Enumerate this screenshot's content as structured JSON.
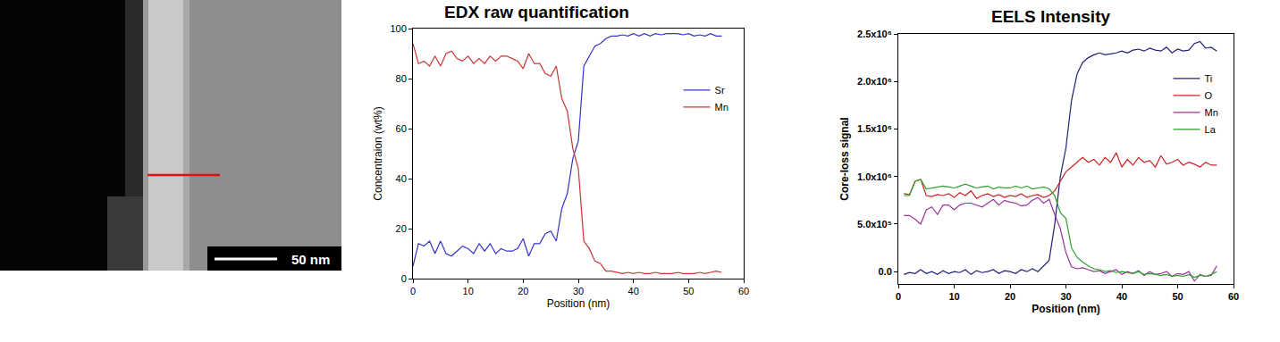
{
  "chart_data": [
    {
      "type": "image",
      "annotations": [
        "50 nm"
      ]
    },
    {
      "type": "line",
      "title": "EDX raw quantification",
      "x_label": "Position (nm)",
      "y_label": "Concentraion (wt%)",
      "x": [
        0,
        1,
        2,
        3,
        4,
        5,
        6,
        7,
        8,
        9,
        10,
        11,
        12,
        13,
        14,
        15,
        16,
        17,
        18,
        19,
        20,
        21,
        22,
        23,
        24,
        25,
        26,
        27,
        28,
        29,
        30,
        31,
        32,
        33,
        34,
        35,
        36,
        37,
        38,
        39,
        40,
        41,
        42,
        43,
        44,
        45,
        46,
        47,
        48,
        49,
        50,
        51,
        52,
        53,
        54,
        55,
        56
      ],
      "series": [
        {
          "name": "Sr",
          "color": "#3333cc",
          "values": [
            5,
            14,
            13,
            15,
            10,
            15,
            10,
            9,
            11,
            13,
            12,
            10,
            14,
            11,
            14,
            10,
            12,
            11,
            11,
            12,
            16,
            9,
            14,
            14,
            18,
            19,
            15,
            28,
            34,
            48,
            55,
            85,
            89,
            93,
            94,
            96,
            97,
            97,
            97.5,
            97,
            98,
            97,
            98,
            97,
            98,
            97.5,
            98,
            98,
            98,
            97.5,
            98,
            97,
            97.5,
            97,
            98,
            97,
            97
          ]
        },
        {
          "name": "Mn",
          "color": "#cc3333",
          "values": [
            94,
            86,
            87,
            85,
            89,
            85,
            90,
            91,
            88,
            87,
            89,
            86,
            88,
            86,
            89,
            87,
            89,
            89,
            88,
            87,
            84,
            90,
            86,
            86,
            82,
            81,
            85,
            72,
            67,
            52,
            44,
            15,
            12,
            7,
            6,
            3,
            3,
            2.5,
            2,
            2.5,
            2,
            2.5,
            2,
            2,
            2.5,
            2,
            2,
            2,
            2.5,
            2,
            2,
            2,
            2.5,
            2,
            2.5,
            3,
            2.5
          ]
        }
      ],
      "xlim": [
        0,
        60
      ],
      "xticks": [
        0,
        10,
        20,
        30,
        40,
        50,
        60
      ],
      "ylim": [
        0,
        100
      ],
      "yticks": [
        0,
        20,
        40,
        60,
        80,
        100
      ],
      "grid": false,
      "legend": "right"
    },
    {
      "type": "line",
      "title": "EELS Intensity",
      "x_label": "Position (nm)",
      "y_label": "Core-loss signal",
      "x": [
        1,
        2,
        3,
        4,
        5,
        6,
        7,
        8,
        9,
        10,
        11,
        12,
        13,
        14,
        15,
        16,
        17,
        18,
        19,
        20,
        21,
        22,
        23,
        24,
        25,
        26,
        27,
        28,
        29,
        30,
        31,
        32,
        33,
        34,
        35,
        36,
        37,
        38,
        39,
        40,
        41,
        42,
        43,
        44,
        45,
        46,
        47,
        48,
        49,
        50,
        51,
        52,
        53,
        54,
        55,
        56,
        57
      ],
      "series": [
        {
          "name": "Ti",
          "color": "#1f1f7a",
          "values": [
            -30000,
            -10000,
            -20000,
            20000,
            -20000,
            0,
            -30000,
            10000,
            -20000,
            0,
            -10000,
            20000,
            -30000,
            10000,
            -10000,
            0,
            20000,
            -20000,
            10000,
            0,
            -20000,
            20000,
            0,
            30000,
            0,
            60000,
            120000,
            500000,
            1000000,
            1300000,
            1800000,
            2080000,
            2200000,
            2250000,
            2280000,
            2300000,
            2280000,
            2290000,
            2300000,
            2320000,
            2300000,
            2330000,
            2340000,
            2320000,
            2350000,
            2330000,
            2320000,
            2360000,
            2300000,
            2340000,
            2320000,
            2330000,
            2400000,
            2420000,
            2350000,
            2360000,
            2320000
          ]
        },
        {
          "name": "O",
          "color": "#cc2222",
          "values": [
            820000,
            810000,
            950000,
            970000,
            800000,
            790000,
            810000,
            800000,
            820000,
            780000,
            830000,
            800000,
            850000,
            770000,
            800000,
            820000,
            790000,
            810000,
            780000,
            800000,
            790000,
            820000,
            780000,
            800000,
            810000,
            780000,
            800000,
            850000,
            950000,
            1050000,
            1100000,
            1150000,
            1200000,
            1150000,
            1180000,
            1120000,
            1200000,
            1150000,
            1250000,
            1100000,
            1180000,
            1120000,
            1200000,
            1150000,
            1170000,
            1100000,
            1220000,
            1130000,
            1150000,
            1180000,
            1120000,
            1150000,
            1130000,
            1100000,
            1150000,
            1120000,
            1120000
          ]
        },
        {
          "name": "Mn",
          "color": "#993399",
          "values": [
            590000,
            590000,
            550000,
            500000,
            650000,
            680000,
            600000,
            700000,
            700000,
            650000,
            700000,
            720000,
            720000,
            700000,
            680000,
            720000,
            760000,
            700000,
            750000,
            730000,
            720000,
            690000,
            700000,
            750000,
            780000,
            720000,
            760000,
            600000,
            450000,
            200000,
            50000,
            30000,
            40000,
            20000,
            0,
            10000,
            -20000,
            0,
            20000,
            -30000,
            0,
            -20000,
            10000,
            -40000,
            0,
            -30000,
            -20000,
            0,
            -50000,
            -20000,
            -30000,
            0,
            -100000,
            -30000,
            -50000,
            -40000,
            60000
          ]
        },
        {
          "name": "La",
          "color": "#2e9e2e",
          "values": [
            800000,
            800000,
            950000,
            970000,
            870000,
            880000,
            890000,
            900000,
            890000,
            880000,
            900000,
            920000,
            900000,
            880000,
            890000,
            900000,
            870000,
            890000,
            880000,
            880000,
            900000,
            880000,
            900000,
            870000,
            880000,
            890000,
            870000,
            800000,
            620000,
            560000,
            250000,
            150000,
            100000,
            60000,
            30000,
            20000,
            0,
            10000,
            -10000,
            0,
            -10000,
            -20000,
            0,
            -30000,
            -20000,
            -30000,
            -40000,
            -30000,
            -50000,
            -40000,
            -50000,
            -30000,
            -60000,
            -40000,
            -50000,
            -30000,
            0
          ]
        }
      ],
      "xlim": [
        0,
        60
      ],
      "xticks": [
        0,
        10,
        20,
        30,
        40,
        50,
        60
      ],
      "ylim": [
        -130000,
        2500000
      ],
      "yticks": [
        {
          "value": 0,
          "label": "0.0"
        },
        {
          "value": 500000,
          "label": "5.0x10⁵"
        },
        {
          "value": 1000000,
          "label": "1.0x10⁶"
        },
        {
          "value": 1500000,
          "label": "1.5x10⁶"
        },
        {
          "value": 2000000,
          "label": "2.0x10⁶"
        },
        {
          "value": 2500000,
          "label": "2.5x10⁶"
        }
      ],
      "grid": false,
      "legend": "right"
    }
  ]
}
